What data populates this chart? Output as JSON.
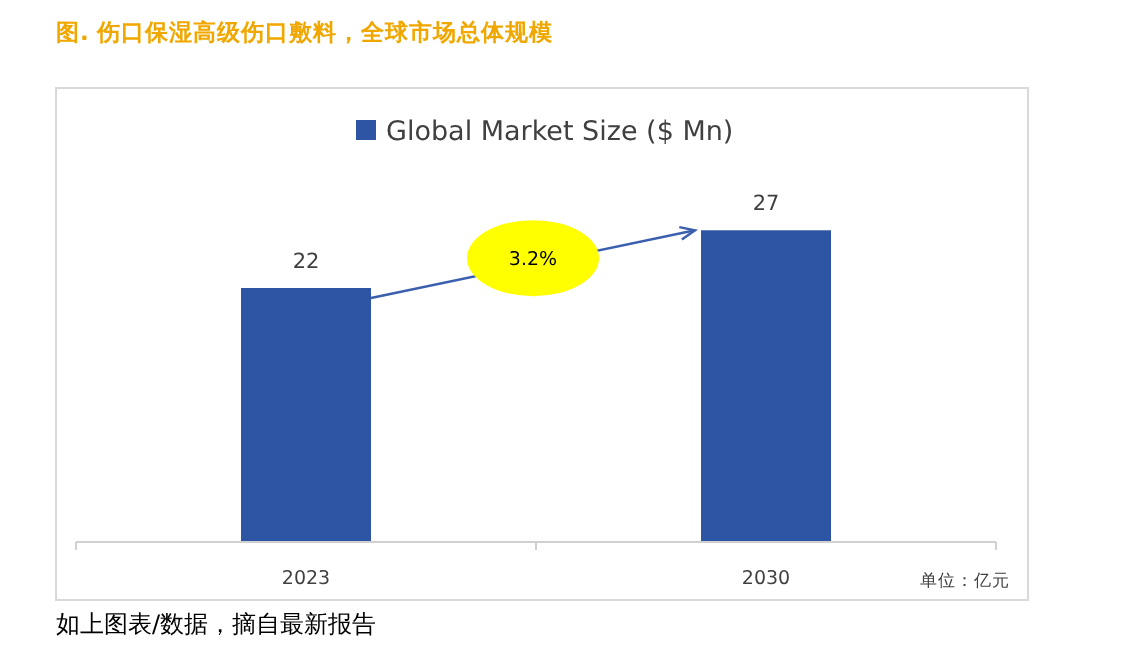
{
  "chart_data": {
    "type": "bar",
    "title": "图. 伤口保湿高级伤口敷料，全球市场总体规模",
    "categories": [
      "2023",
      "2030"
    ],
    "series": [
      {
        "name": "Global Market Size ($ Mn)",
        "color": "#2e54a4",
        "values": [
          22,
          27
        ]
      }
    ],
    "data_labels": true,
    "legend": "top",
    "annotations": [
      "3.2%",
      "单位：亿元",
      "如上图表/数据，摘自最新报告"
    ]
  }
}
